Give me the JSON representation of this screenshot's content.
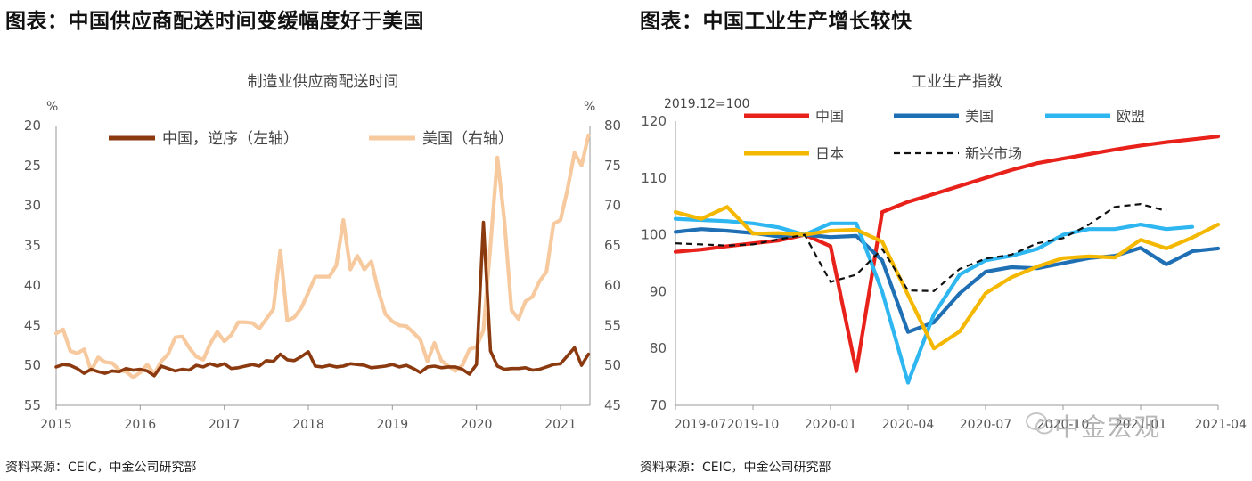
{
  "left_panel": {
    "title": "图表：中国供应商配送时间变缓幅度好于美国",
    "source": "资料来源：CEIC，中金公司研究部"
  },
  "right_panel": {
    "title": "图表：中国工业生产增长较快",
    "source": "资料来源：CEIC，中金公司研究部"
  },
  "watermark": "中金宏观",
  "chart_data": [
    {
      "type": "line",
      "title": "制造业供应商配送时间",
      "left_unit": "%",
      "right_unit": "%",
      "left_axis": {
        "reversed": true,
        "ylim": [
          20,
          55
        ],
        "ticks": [
          20,
          25,
          30,
          35,
          40,
          45,
          50,
          55
        ]
      },
      "right_axis": {
        "ylim": [
          45,
          80
        ],
        "ticks": [
          45,
          50,
          55,
          60,
          65,
          70,
          75,
          80
        ]
      },
      "x_ticks": [
        "2015",
        "2016",
        "2017",
        "2018",
        "2019",
        "2020",
        "2021"
      ],
      "x_range": [
        2015.0,
        2021.35
      ],
      "legend_position": "top",
      "series": [
        {
          "name": "中国，逆序（左轴）",
          "axis": "left",
          "color": "#8B3A0F",
          "t": [
            2015.0,
            2015.083,
            2015.167,
            2015.25,
            2015.333,
            2015.417,
            2015.5,
            2015.583,
            2015.667,
            2015.75,
            2015.833,
            2015.917,
            2016.0,
            2016.083,
            2016.167,
            2016.25,
            2016.333,
            2016.417,
            2016.5,
            2016.583,
            2016.667,
            2016.75,
            2016.833,
            2016.917,
            2017.0,
            2017.083,
            2017.167,
            2017.25,
            2017.333,
            2017.417,
            2017.5,
            2017.583,
            2017.667,
            2017.75,
            2017.833,
            2017.917,
            2018.0,
            2018.083,
            2018.167,
            2018.25,
            2018.333,
            2018.417,
            2018.5,
            2018.583,
            2018.667,
            2018.75,
            2018.833,
            2018.917,
            2019.0,
            2019.083,
            2019.167,
            2019.25,
            2019.333,
            2019.417,
            2019.5,
            2019.583,
            2019.667,
            2019.75,
            2019.833,
            2019.917,
            2020.0,
            2020.083,
            2020.167,
            2020.25,
            2020.333,
            2020.417,
            2020.5,
            2020.583,
            2020.667,
            2020.75,
            2020.833,
            2020.917,
            2021.0,
            2021.083,
            2021.167,
            2021.25,
            2021.333
          ],
          "values": [
            50.2,
            49.9,
            50.0,
            50.4,
            51.0,
            50.5,
            50.8,
            51.0,
            50.7,
            50.8,
            50.4,
            50.6,
            50.5,
            50.7,
            51.3,
            50.1,
            50.4,
            50.7,
            50.5,
            50.6,
            50.0,
            50.2,
            49.8,
            50.1,
            49.8,
            50.4,
            50.3,
            50.1,
            49.9,
            50.1,
            49.4,
            49.5,
            48.6,
            49.3,
            49.4,
            48.9,
            48.3,
            50.1,
            50.2,
            50.0,
            50.2,
            50.1,
            49.8,
            49.9,
            50.0,
            50.3,
            50.2,
            50.1,
            49.9,
            50.2,
            50.0,
            50.4,
            50.9,
            50.2,
            50.1,
            50.3,
            50.2,
            50.2,
            50.5,
            51.1,
            49.9,
            32.1,
            48.2,
            50.1,
            50.5,
            50.4,
            50.4,
            50.3,
            50.6,
            50.5,
            50.2,
            49.9,
            49.8,
            48.8,
            47.8,
            50.0,
            48.6
          ]
        },
        {
          "name": "美国（右轴）",
          "axis": "right",
          "color": "#F7C99E",
          "t": [
            2015.0,
            2015.083,
            2015.167,
            2015.25,
            2015.333,
            2015.417,
            2015.5,
            2015.583,
            2015.667,
            2015.75,
            2015.833,
            2015.917,
            2016.0,
            2016.083,
            2016.167,
            2016.25,
            2016.333,
            2016.417,
            2016.5,
            2016.583,
            2016.667,
            2016.75,
            2016.833,
            2016.917,
            2017.0,
            2017.083,
            2017.167,
            2017.25,
            2017.333,
            2017.417,
            2017.5,
            2017.583,
            2017.667,
            2017.75,
            2017.833,
            2017.917,
            2018.0,
            2018.083,
            2018.167,
            2018.25,
            2018.333,
            2018.417,
            2018.5,
            2018.583,
            2018.667,
            2018.75,
            2018.833,
            2018.917,
            2019.0,
            2019.083,
            2019.167,
            2019.25,
            2019.333,
            2019.417,
            2019.5,
            2019.583,
            2019.667,
            2019.75,
            2019.833,
            2019.917,
            2020.0,
            2020.083,
            2020.167,
            2020.25,
            2020.333,
            2020.417,
            2020.5,
            2020.583,
            2020.667,
            2020.75,
            2020.833,
            2020.917,
            2021.0,
            2021.083,
            2021.167,
            2021.25,
            2021.333
          ],
          "values": [
            54.0,
            54.5,
            51.8,
            51.5,
            52.0,
            49.3,
            51.0,
            50.4,
            50.3,
            49.4,
            49.2,
            48.5,
            49.1,
            50.1,
            48.9,
            50.5,
            51.4,
            53.5,
            53.6,
            52.2,
            51.1,
            50.7,
            52.7,
            54.2,
            53.0,
            53.8,
            55.4,
            55.4,
            55.3,
            54.6,
            55.8,
            57.0,
            64.4,
            55.6,
            56.0,
            57.2,
            59.1,
            61.1,
            61.1,
            61.1,
            62.5,
            68.2,
            62.0,
            63.7,
            62.0,
            63.0,
            59.3,
            56.4,
            55.5,
            55.0,
            54.9,
            54.1,
            53.2,
            50.5,
            52.8,
            50.6,
            49.9,
            49.3,
            50.0,
            52.0,
            52.3,
            54.4,
            65.0,
            76.0,
            68.0,
            56.9,
            55.8,
            58.0,
            58.6,
            60.5,
            61.7,
            67.7,
            68.2,
            72.0,
            76.6,
            75.0,
            78.8
          ]
        }
      ]
    },
    {
      "type": "line",
      "title": "工业生产指数",
      "unit_label": "2019.12=100",
      "ylim": [
        70,
        120
      ],
      "y_ticks": [
        70,
        80,
        90,
        100,
        110,
        120
      ],
      "x_ticks": [
        "2019-07",
        "2019-10",
        "2020-01",
        "2020-04",
        "2020-07",
        "2020-10",
        "2021-01",
        "2021-04"
      ],
      "x_range": [
        0,
        21
      ],
      "legend_position": "top",
      "series": [
        {
          "name": "中国",
          "color": "#E8221B",
          "dash": false,
          "t": [
            0,
            1,
            2,
            3,
            4,
            5,
            6,
            7,
            8,
            9,
            10,
            11,
            12,
            13,
            14,
            15,
            16,
            17,
            18,
            19,
            20,
            21
          ],
          "values": [
            97.0,
            97.4,
            98.0,
            98.5,
            99.0,
            100.0,
            98.0,
            76.0,
            104.0,
            105.8,
            107.2,
            108.6,
            110.0,
            111.4,
            112.6,
            113.4,
            114.2,
            115.0,
            115.7,
            116.3,
            116.8,
            117.3
          ]
        },
        {
          "name": "美国",
          "color": "#1F6FB5",
          "dash": false,
          "t": [
            0,
            1,
            2,
            3,
            4,
            5,
            6,
            7,
            8,
            9,
            10,
            11,
            12,
            13,
            14,
            15,
            16,
            17,
            18,
            19,
            20,
            21
          ],
          "values": [
            100.5,
            101.0,
            100.7,
            100.3,
            99.7,
            100.0,
            99.6,
            99.8,
            95.5,
            82.9,
            84.6,
            89.7,
            93.5,
            94.3,
            94.1,
            95.0,
            95.9,
            96.3,
            97.7,
            94.8,
            97.1,
            97.6
          ]
        },
        {
          "name": "欧盟",
          "color": "#2EB6F0",
          "dash": false,
          "t": [
            0,
            1,
            2,
            3,
            4,
            5,
            6,
            7,
            8,
            9,
            10,
            11,
            12,
            13,
            14,
            15,
            16,
            17,
            18,
            19,
            20
          ],
          "values": [
            102.8,
            102.6,
            102.4,
            102.0,
            101.3,
            100.0,
            102.0,
            102.0,
            90.0,
            74.0,
            86.0,
            93.0,
            95.5,
            96.3,
            97.5,
            100.0,
            101.0,
            101.0,
            101.8,
            101.0,
            101.4
          ]
        },
        {
          "name": "日本",
          "color": "#F4B800",
          "dash": false,
          "t": [
            0,
            1,
            2,
            3,
            4,
            5,
            6,
            7,
            8,
            9,
            10,
            11,
            12,
            13,
            14,
            15,
            16,
            17,
            18,
            19,
            20,
            21
          ],
          "values": [
            104.0,
            102.8,
            104.9,
            100.2,
            100.3,
            100.0,
            100.7,
            100.9,
            98.8,
            89.4,
            80.0,
            83.0,
            89.7,
            92.5,
            94.4,
            95.9,
            96.2,
            96.0,
            99.1,
            97.6,
            99.5,
            101.8
          ]
        },
        {
          "name": "新兴市场",
          "color": "#111111",
          "dash": true,
          "t": [
            0,
            1,
            2,
            3,
            4,
            5,
            6,
            7,
            8,
            9,
            10,
            11,
            12,
            13,
            14,
            15,
            16,
            17,
            18,
            19,
            20
          ],
          "values": [
            98.5,
            98.3,
            98.1,
            98.3,
            99.2,
            100.0,
            91.7,
            93.0,
            97.5,
            90.2,
            90.1,
            94.0,
            95.8,
            96.5,
            98.5,
            99.4,
            101.8,
            104.9,
            105.4,
            104.2,
            null
          ]
        }
      ]
    }
  ]
}
